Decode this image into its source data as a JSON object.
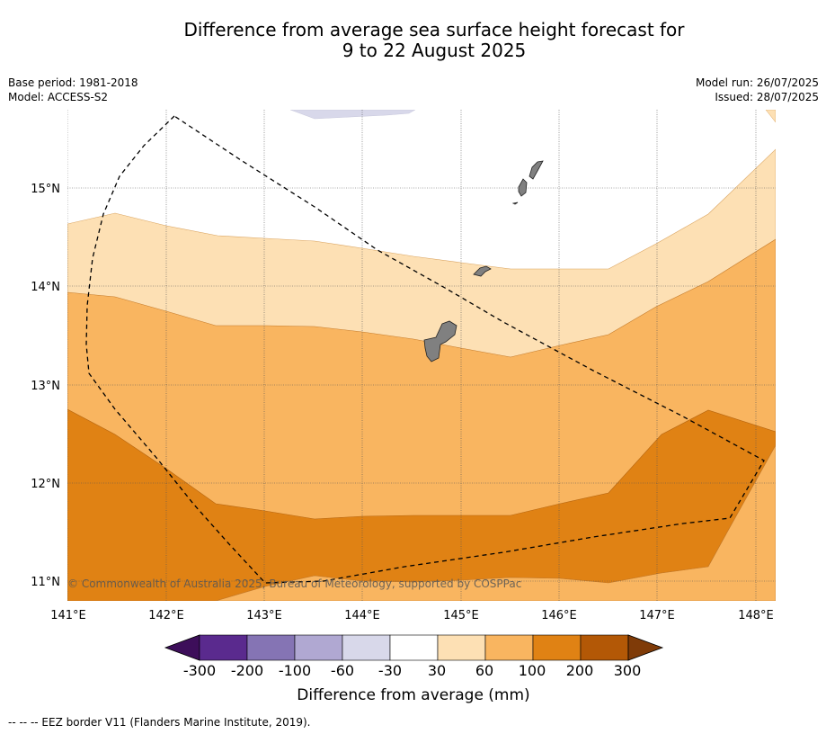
{
  "title": {
    "line1": "Difference from average sea surface height forecast for",
    "line2": "9 to 22 August 2025"
  },
  "meta": {
    "base_period": "Base period: 1981-2018",
    "model": "Model: ACCESS-S2",
    "model_run": "Model run: 26/07/2025",
    "issued": "Issued: 28/07/2025"
  },
  "axes": {
    "lon_labels": [
      "141°E",
      "142°E",
      "143°E",
      "144°E",
      "145°E",
      "146°E",
      "147°E",
      "148°E"
    ],
    "lat_labels": [
      "15°N",
      "14°N",
      "13°N",
      "12°N",
      "11°N"
    ],
    "lon_range": [
      141.0,
      148.2
    ],
    "lat_range": [
      10.8,
      15.8
    ]
  },
  "copyright": "© Commonwealth of Australia 2025, Bureau of Meteorology, supported by COSPPac",
  "colorbar": {
    "title": "Difference from average (mm)",
    "labels": [
      "-300",
      "-200",
      "-100",
      "-60",
      "-30",
      "30",
      "60",
      "100",
      "200",
      "300"
    ],
    "colors": [
      "#3d0e5a",
      "#5a2a8e",
      "#8574b4",
      "#b0a8d2",
      "#d8d8ea",
      "#ffffff",
      "#fde0b4",
      "#f9b560",
      "#e08214",
      "#b35806",
      "#7f3b08"
    ]
  },
  "footnote": "-- -- -- EEZ border V11 (Flanders Marine Institute, 2019).",
  "legend_colors": {
    "light_orange": "#fde0b4",
    "mid_orange": "#f9b560",
    "dark_orange": "#e08214",
    "lavender": "#d8d8ea",
    "land": "#808080"
  }
}
